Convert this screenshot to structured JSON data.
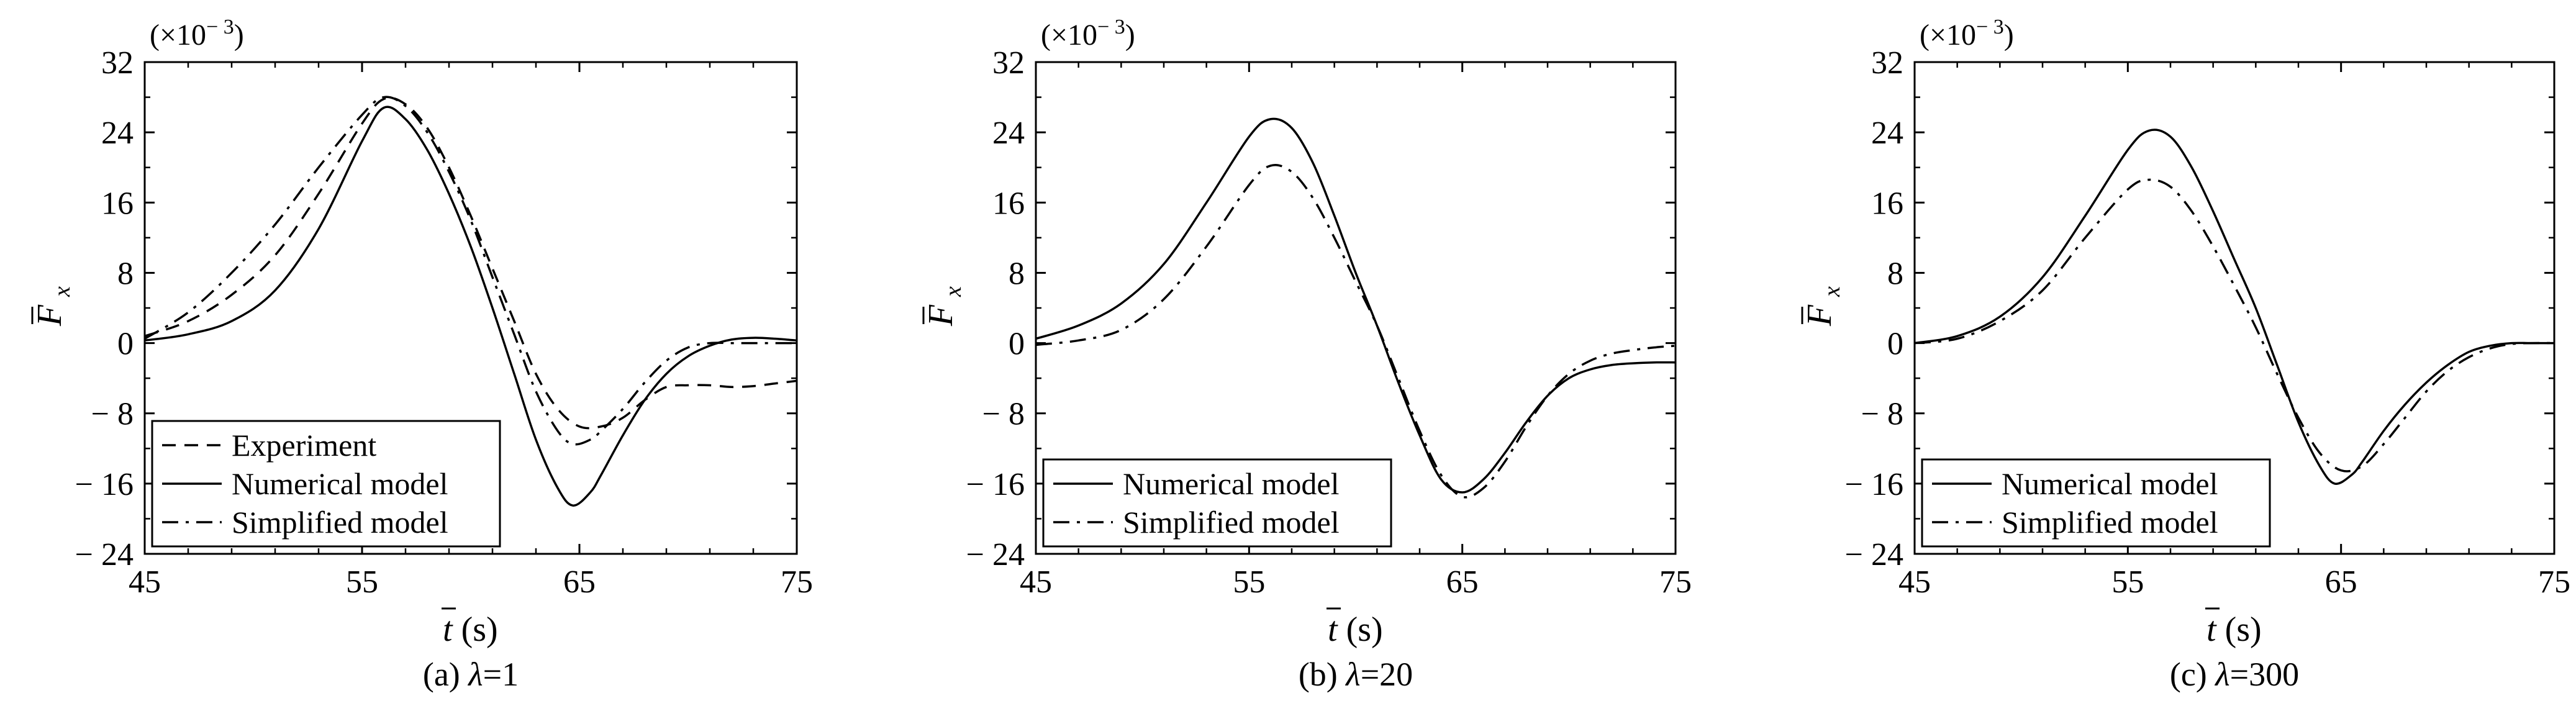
{
  "figure": {
    "y_multiplier": {
      "prefix": "(×10",
      "exp": "− 3",
      "suffix": ")"
    },
    "xlabel": {
      "symbol": "t",
      "unit": " (s)"
    },
    "ylabel": {
      "symbol": "F",
      "sub": "x"
    }
  },
  "chart_data": [
    {
      "type": "line",
      "caption": {
        "prefix": "(a) ",
        "lambda": "λ",
        "value": "=1"
      },
      "xlim": [
        45,
        75
      ],
      "ylim": [
        -24,
        32
      ],
      "xticks": [
        45,
        55,
        65,
        75
      ],
      "yticks": [
        32,
        24,
        16,
        8,
        0,
        -8,
        -16,
        -24
      ],
      "ytick_labels": [
        "32",
        "24",
        "16",
        "8",
        "0",
        "− 8",
        "− 16",
        "− 24"
      ],
      "xtick_labels": [
        "45",
        "55",
        "65",
        "75"
      ],
      "legend_position": "bottom-left",
      "series": [
        {
          "name": "Experiment",
          "style": "dashed",
          "x": [
            45,
            47,
            49,
            51,
            53,
            55,
            56,
            57,
            58,
            59,
            60,
            61,
            62,
            63,
            64,
            65,
            66,
            67,
            68,
            69,
            70,
            71,
            72,
            73,
            74,
            75
          ],
          "y": [
            0.8,
            2.5,
            5.5,
            10,
            17,
            25,
            27.8,
            27.2,
            24.5,
            20,
            14.5,
            8.5,
            2.5,
            -3.5,
            -7.5,
            -9.5,
            -9.5,
            -8.5,
            -6.5,
            -5,
            -4.8,
            -4.8,
            -5,
            -4.9,
            -4.6,
            -4.3
          ]
        },
        {
          "name": "Numerical model",
          "style": "solid",
          "x": [
            45,
            47,
            49,
            51,
            53,
            55,
            56,
            57,
            58,
            59,
            60,
            61,
            62,
            63,
            64,
            64.7,
            65.5,
            66,
            67,
            68,
            69,
            70,
            71,
            72,
            73,
            74,
            75
          ],
          "y": [
            0.3,
            1,
            2.5,
            6,
            13,
            23,
            26.8,
            25.5,
            22,
            17,
            11,
            4,
            -3.5,
            -11,
            -16.5,
            -18.5,
            -17,
            -15,
            -10.5,
            -6.5,
            -3.5,
            -1.5,
            -0.3,
            0.4,
            0.6,
            0.5,
            0.3
          ]
        },
        {
          "name": "Simplified model",
          "style": "dashdot",
          "x": [
            45,
            47,
            49,
            51,
            53,
            55,
            56,
            57,
            58,
            59,
            60,
            61,
            62,
            63,
            64,
            64.7,
            65.5,
            66,
            67,
            68,
            69,
            70,
            71,
            72,
            73,
            74,
            75
          ],
          "y": [
            0.5,
            3.5,
            8,
            13.5,
            20,
            26,
            28,
            27,
            24,
            19.5,
            14,
            7.5,
            1,
            -5.5,
            -10,
            -11.5,
            -11,
            -10,
            -7.5,
            -4.5,
            -2,
            -0.5,
            0,
            0,
            0,
            0,
            0
          ]
        }
      ]
    },
    {
      "type": "line",
      "caption": {
        "prefix": "(b) ",
        "lambda": "λ",
        "value": "=20"
      },
      "xlim": [
        45,
        75
      ],
      "ylim": [
        -24,
        32
      ],
      "xticks": [
        45,
        55,
        65,
        75
      ],
      "yticks": [
        32,
        24,
        16,
        8,
        0,
        -8,
        -16,
        -24
      ],
      "ytick_labels": [
        "32",
        "24",
        "16",
        "8",
        "0",
        "− 8",
        "− 16",
        "− 24"
      ],
      "xtick_labels": [
        "45",
        "55",
        "65",
        "75"
      ],
      "legend_position": "bottom-left",
      "series": [
        {
          "name": "Numerical model",
          "style": "solid",
          "x": [
            45,
            47,
            49,
            51,
            53,
            55,
            56,
            57,
            58,
            59,
            60,
            61,
            62,
            63,
            64,
            65,
            66,
            67,
            68,
            69,
            70,
            71,
            72,
            73,
            74,
            75
          ],
          "y": [
            0.5,
            2,
            4.5,
            9,
            16,
            23.5,
            25.5,
            24.5,
            20.5,
            14.5,
            8,
            2,
            -4.5,
            -10.5,
            -15.5,
            -17,
            -15.5,
            -12.5,
            -9,
            -6,
            -4,
            -3,
            -2.5,
            -2.3,
            -2.2,
            -2.2
          ]
        },
        {
          "name": "Simplified model",
          "style": "dashdot",
          "x": [
            45,
            47,
            49,
            51,
            53,
            55,
            56,
            57,
            58,
            59,
            60,
            61,
            62,
            63,
            64,
            65,
            66,
            67,
            68,
            69,
            70,
            71,
            72,
            73,
            74,
            75
          ],
          "y": [
            -0.2,
            0.3,
            1.5,
            5,
            11,
            18,
            20.2,
            19.5,
            16.5,
            12,
            7,
            2,
            -4,
            -10,
            -15,
            -17.5,
            -16.5,
            -13.5,
            -9.5,
            -6,
            -3.5,
            -2,
            -1.2,
            -0.8,
            -0.5,
            -0.3
          ]
        }
      ]
    },
    {
      "type": "line",
      "caption": {
        "prefix": "(c) ",
        "lambda": "λ",
        "value": "=300"
      },
      "xlim": [
        45,
        75
      ],
      "ylim": [
        -24,
        32
      ],
      "xticks": [
        45,
        55,
        65,
        75
      ],
      "yticks": [
        32,
        24,
        16,
        8,
        0,
        -8,
        -16,
        -24
      ],
      "ytick_labels": [
        "32",
        "24",
        "16",
        "8",
        "0",
        "− 8",
        "− 16",
        "− 24"
      ],
      "xtick_labels": [
        "45",
        "55",
        "65",
        "75"
      ],
      "legend_position": "bottom-left",
      "series": [
        {
          "name": "Numerical model",
          "style": "solid",
          "x": [
            45,
            47,
            49,
            51,
            53,
            55,
            56,
            57,
            58,
            59,
            60,
            61,
            62,
            63,
            64,
            64.7,
            65.5,
            66,
            67,
            68,
            69,
            70,
            71,
            72,
            73,
            74,
            75
          ],
          "y": [
            0,
            0.8,
            3,
            7.5,
            14.5,
            22,
            24.2,
            23.5,
            20,
            15,
            9.5,
            4,
            -2.5,
            -9,
            -14,
            -16,
            -15,
            -13.5,
            -10,
            -7,
            -4.5,
            -2.5,
            -1,
            -0.3,
            0,
            0,
            0
          ]
        },
        {
          "name": "Simplified model",
          "style": "dashdot",
          "x": [
            45,
            47,
            49,
            51,
            53,
            55,
            56,
            57,
            58,
            59,
            60,
            61,
            62,
            63,
            64,
            65,
            66,
            67,
            68,
            69,
            70,
            71,
            72,
            73,
            74,
            75
          ],
          "y": [
            0,
            0.5,
            2.5,
            6,
            12,
            17.5,
            18.6,
            17.8,
            15,
            11,
            6.5,
            1.8,
            -3.5,
            -8.5,
            -12.5,
            -14.5,
            -14,
            -11.5,
            -8.5,
            -5.5,
            -3.2,
            -1.6,
            -0.6,
            -0.1,
            0,
            0
          ]
        }
      ]
    }
  ]
}
